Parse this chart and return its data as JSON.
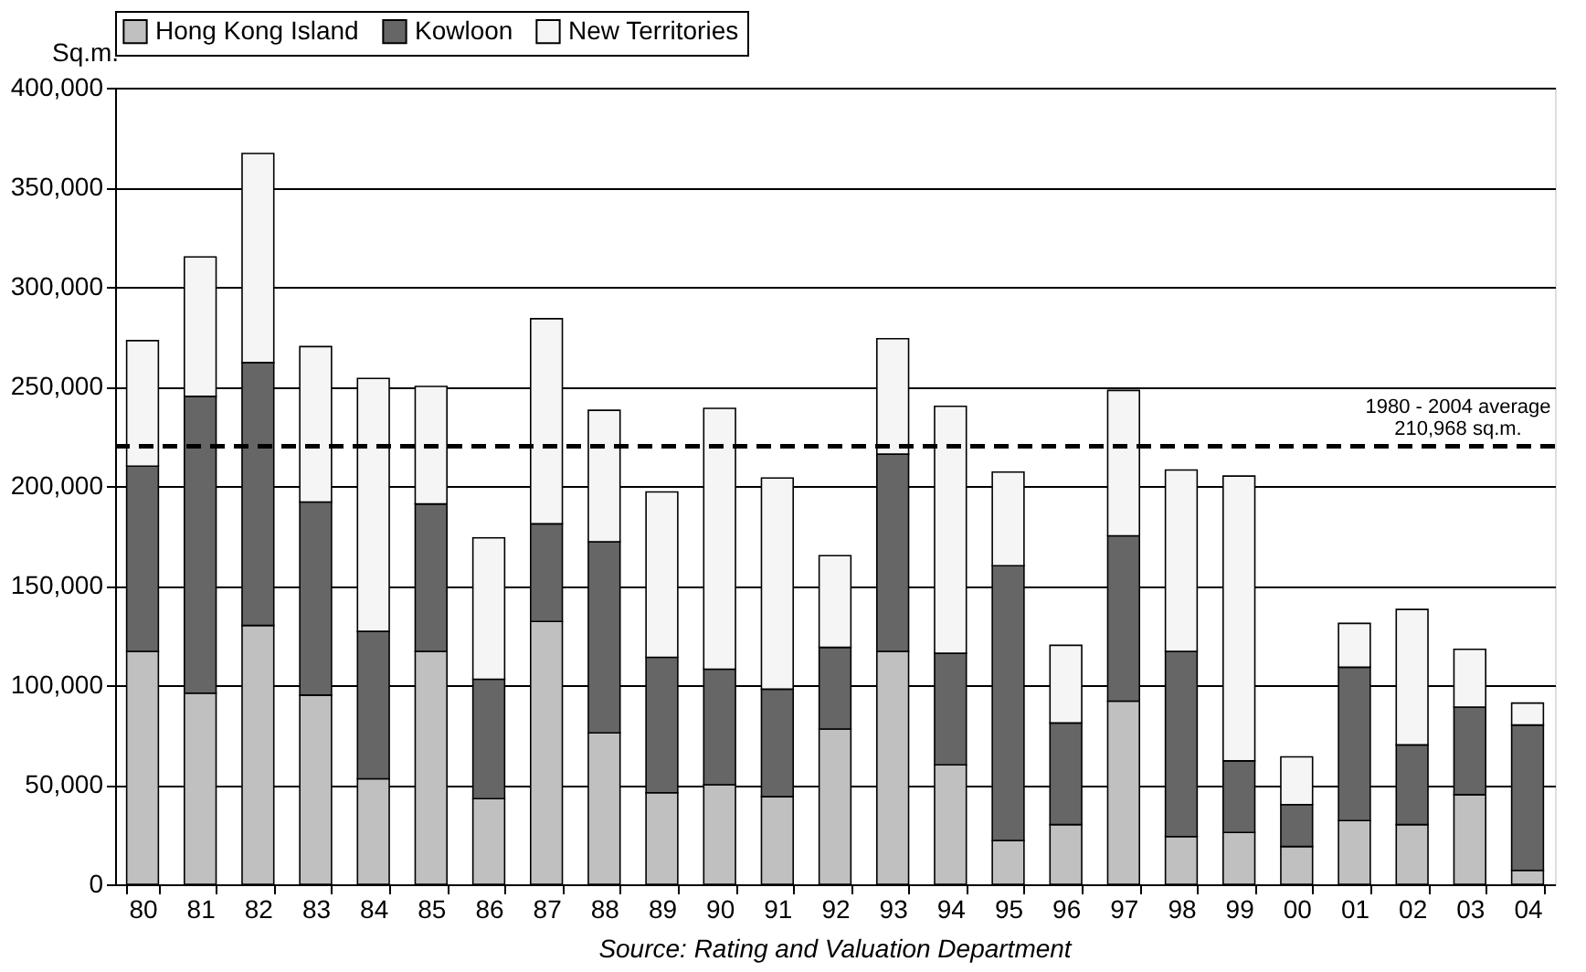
{
  "chart_data": {
    "type": "bar",
    "stacked": true,
    "ylabel": "Sq.m.",
    "categories": [
      "80",
      "81",
      "82",
      "83",
      "84",
      "85",
      "86",
      "87",
      "88",
      "89",
      "90",
      "91",
      "92",
      "93",
      "94",
      "95",
      "96",
      "97",
      "98",
      "99",
      "00",
      "01",
      "02",
      "03",
      "04"
    ],
    "series": [
      {
        "name": "Hong Kong Island",
        "color": "#c0c0c0",
        "values": [
          117000,
          96000,
          130000,
          95000,
          53000,
          117000,
          43000,
          132000,
          76000,
          46000,
          50000,
          44000,
          78000,
          117000,
          60000,
          22000,
          30000,
          92000,
          24000,
          26000,
          19000,
          32000,
          30000,
          45000,
          7000
        ]
      },
      {
        "name": "Kowloon",
        "color": "#666666",
        "values": [
          93000,
          149000,
          132000,
          97000,
          74000,
          74000,
          60000,
          49000,
          96000,
          68000,
          58000,
          54000,
          41000,
          99000,
          56000,
          138000,
          51000,
          83000,
          93000,
          36000,
          21000,
          77000,
          40000,
          44000,
          73000
        ]
      },
      {
        "name": "New Territories",
        "color": "#f5f5f5",
        "values": [
          63000,
          70000,
          105000,
          78000,
          127000,
          59000,
          71000,
          103000,
          66000,
          83000,
          131000,
          106000,
          46000,
          58000,
          124000,
          47000,
          39000,
          73000,
          91000,
          143000,
          24000,
          22000,
          68000,
          29000,
          11000
        ]
      }
    ],
    "ylim": [
      0,
      400000
    ],
    "yticks": [
      0,
      {
        "value": 50000,
        "label": "50,000"
      },
      {
        "value": 100000,
        "label": "100,000"
      },
      {
        "value": 150000,
        "label": "150,000"
      },
      {
        "value": 200000,
        "label": "200,000"
      },
      {
        "value": 250000,
        "label": "250,000"
      },
      {
        "value": 300000,
        "label": "300,000"
      },
      {
        "value": 350000,
        "label": "350,000"
      },
      {
        "value": 400000,
        "label": "400,000"
      }
    ],
    "grid": "y",
    "legend": "top",
    "ref_lines": [
      {
        "axis": "y",
        "value": 220000,
        "label": "1980 - 2004 average\n210,968 sq.m.",
        "line_style": "dashed",
        "color": "#000000"
      }
    ],
    "annotations": [
      "Source: Rating and Valuation Department"
    ]
  }
}
